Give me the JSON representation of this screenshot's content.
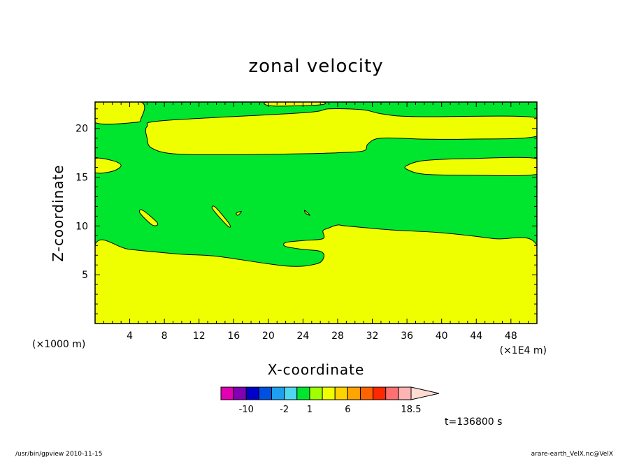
{
  "chart_data": {
    "type": "contour",
    "title": "zonal velocity",
    "xlabel": "X-coordinate",
    "ylabel": "Z-coordinate",
    "x_units": "(×1E4 m)",
    "y_units": "(×1000 m)",
    "xlim": [
      0,
      51
    ],
    "ylim": [
      0,
      22.7
    ],
    "xticks": [
      4,
      8,
      12,
      16,
      20,
      24,
      28,
      32,
      36,
      40,
      44,
      48
    ],
    "yticks": [
      5,
      10,
      15,
      20
    ],
    "time_label": "t=136800 s",
    "contour_level": 1,
    "colors": {
      "below": "#00e62e",
      "above": "#f0ff00",
      "line": "#000000"
    },
    "regions": [
      {
        "level": "above",
        "points": [
          [
            0,
            0
          ],
          [
            51,
            0
          ],
          [
            51,
            8.0
          ],
          [
            46,
            8.7
          ],
          [
            40,
            9.3
          ],
          [
            34,
            9.6
          ],
          [
            29,
            10.0
          ],
          [
            28,
            10.1
          ],
          [
            27,
            9.8
          ],
          [
            26.3,
            9.5
          ],
          [
            26.3,
            8.7
          ],
          [
            24,
            8.5
          ],
          [
            22,
            8.3
          ],
          [
            22,
            7.9
          ],
          [
            24,
            7.6
          ],
          [
            26,
            7.4
          ],
          [
            26.4,
            6.8
          ],
          [
            25.5,
            6.1
          ],
          [
            22,
            5.9
          ],
          [
            14,
            6.9
          ],
          [
            10,
            7.1
          ],
          [
            4,
            7.6
          ],
          [
            0,
            8.1
          ]
        ]
      },
      {
        "level": "above",
        "points": [
          [
            6,
            20.2
          ],
          [
            8,
            20.8
          ],
          [
            24,
            21.6
          ],
          [
            27,
            22.0
          ],
          [
            31,
            21.9
          ],
          [
            33,
            21.5
          ],
          [
            37,
            21.2
          ],
          [
            51,
            21.1
          ],
          [
            51,
            19.2
          ],
          [
            43,
            18.9
          ],
          [
            38,
            18.9
          ],
          [
            33,
            19.0
          ],
          [
            31.5,
            18.4
          ],
          [
            31,
            17.7
          ],
          [
            28,
            17.5
          ],
          [
            24,
            17.4
          ],
          [
            15,
            17.3
          ],
          [
            9,
            17.4
          ],
          [
            6.5,
            18.0
          ],
          [
            6,
            19.0
          ]
        ]
      },
      {
        "level": "above",
        "points": [
          [
            0,
            22.7
          ],
          [
            5.3,
            22.7
          ],
          [
            5.3,
            21.0
          ],
          [
            4.5,
            20.6
          ],
          [
            0,
            20.6
          ]
        ]
      },
      {
        "level": "above",
        "points": [
          [
            20,
            22.7
          ],
          [
            26,
            22.7
          ],
          [
            25.8,
            22.4
          ],
          [
            20.5,
            22.3
          ]
        ]
      },
      {
        "level": "above",
        "points": [
          [
            36,
            16.2
          ],
          [
            38,
            16.7
          ],
          [
            43,
            16.9
          ],
          [
            51,
            16.9
          ],
          [
            51,
            15.3
          ],
          [
            43,
            15.2
          ],
          [
            38,
            15.3
          ],
          [
            36,
            15.8
          ]
        ]
      },
      {
        "level": "above",
        "points": [
          [
            0,
            16.9
          ],
          [
            2,
            16.7
          ],
          [
            3,
            16.2
          ],
          [
            2,
            15.6
          ],
          [
            0,
            15.5
          ]
        ]
      },
      {
        "level": "above",
        "points": [
          [
            5.5,
            11.6
          ],
          [
            7.2,
            10.3
          ],
          [
            6.6,
            10.1
          ],
          [
            5.2,
            11.3
          ]
        ]
      },
      {
        "level": "above",
        "points": [
          [
            13.6,
            11.7
          ],
          [
            15.3,
            10.0
          ],
          [
            15.5,
            10.2
          ],
          [
            13.9,
            11.9
          ]
        ]
      },
      {
        "level": "above",
        "points": [
          [
            16.3,
            11.3
          ],
          [
            16.9,
            11.5
          ],
          [
            16.5,
            11.1
          ]
        ]
      },
      {
        "level": "above",
        "points": [
          [
            24.2,
            11.6
          ],
          [
            24.8,
            11.1
          ],
          [
            24.3,
            11.3
          ]
        ]
      }
    ],
    "colorbar": {
      "boxes": [
        {
          "color": "#e200b4"
        },
        {
          "color": "#8000b2"
        },
        {
          "color": "#0000c8"
        },
        {
          "color": "#0050e0"
        },
        {
          "color": "#1ea0f0"
        },
        {
          "color": "#50d7f0"
        },
        {
          "color": "#00e62e"
        },
        {
          "color": "#a0ff00"
        },
        {
          "color": "#f0ff00"
        },
        {
          "color": "#ffd200"
        },
        {
          "color": "#ffa500"
        },
        {
          "color": "#ff6400"
        },
        {
          "color": "#ff2800"
        },
        {
          "color": "#ff7070"
        },
        {
          "color": "#ffb4b4"
        }
      ],
      "extension_color": "#ffdcd2",
      "labels": [
        {
          "text": "-10",
          "after_box": 2
        },
        {
          "text": "-2",
          "after_box": 5
        },
        {
          "text": "1",
          "after_box": 7
        },
        {
          "text": "6",
          "after_box": 10
        },
        {
          "text": "18.5",
          "after_box": 15
        }
      ]
    }
  },
  "footer": {
    "left": "/usr/bin/gpview   2010-11-15",
    "right": "arare-earth_VelX.nc@VelX"
  }
}
